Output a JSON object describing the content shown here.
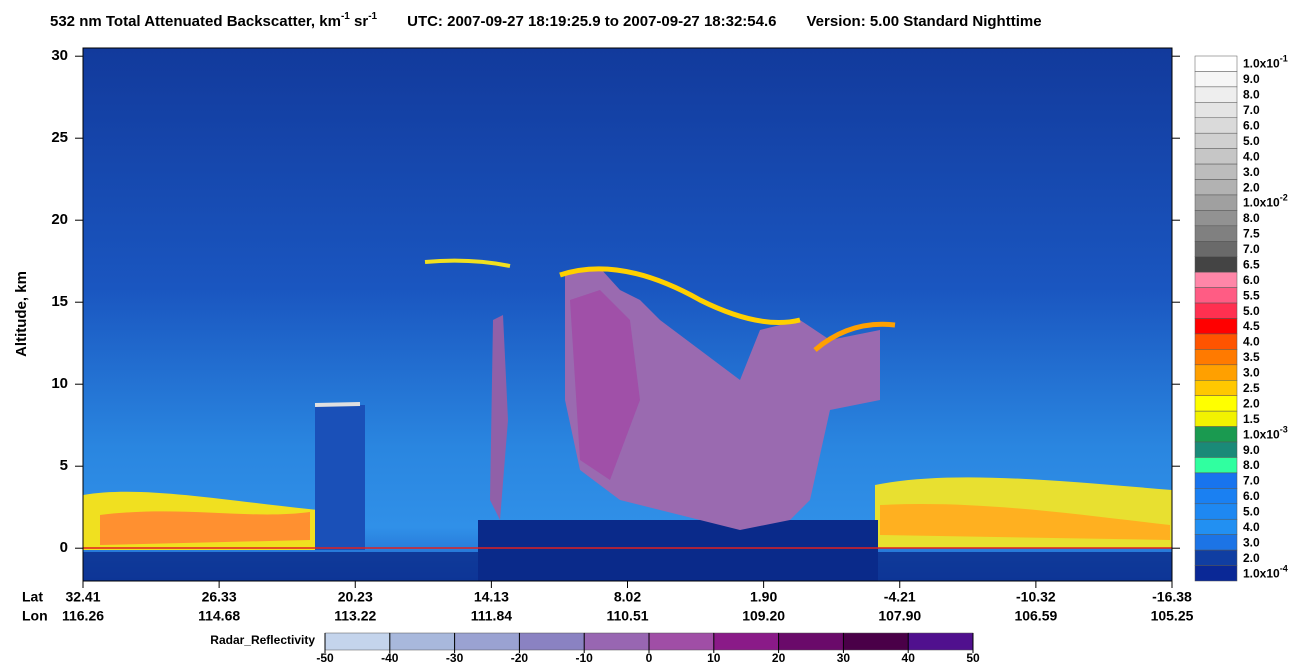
{
  "chart_data": {
    "type": "curtain",
    "title_parts": [
      "532 nm Total Attenuated Backscatter, km",
      "-1",
      " sr",
      "-1"
    ],
    "utc": "UTC:  2007-09-27 18:19:25.9  to  2007-09-27 18:32:54.6",
    "version": "Version: 5.00  Standard  Nighttime",
    "ylabel": "Altitude, km",
    "ylim": [
      -2,
      30.5
    ],
    "yticks": [
      0,
      5,
      10,
      15,
      20,
      25,
      30
    ],
    "x_row_labels": [
      "Lat",
      "Lon"
    ],
    "lat": [
      "32.41",
      "26.33",
      "20.23",
      "14.13",
      "8.02",
      "1.90",
      "-4.21",
      "-10.32",
      "-16.38"
    ],
    "lon": [
      "116.26",
      "114.68",
      "113.22",
      "111.84",
      "110.51",
      "109.20",
      "107.90",
      "106.59",
      "105.25"
    ],
    "colorbar": [
      {
        "text": "1.0x10",
        "sup": "-1",
        "color": "#ffffff"
      },
      {
        "text": "9.0",
        "color": "#f6f6f6"
      },
      {
        "text": "8.0",
        "color": "#eeeeee"
      },
      {
        "text": "7.0",
        "color": "#e4e4e4"
      },
      {
        "text": "6.0",
        "color": "#dadada"
      },
      {
        "text": "5.0",
        "color": "#d0d0d0"
      },
      {
        "text": "4.0",
        "color": "#c6c6c6"
      },
      {
        "text": "3.0",
        "color": "#bcbcbc"
      },
      {
        "text": "2.0",
        "color": "#b2b2b2"
      },
      {
        "text": "1.0x10",
        "sup": "-2",
        "color": "#a0a0a0"
      },
      {
        "text": "8.0",
        "color": "#929292"
      },
      {
        "text": "7.5",
        "color": "#808080"
      },
      {
        "text": "7.0",
        "color": "#6a6a6a"
      },
      {
        "text": "6.5",
        "color": "#444444"
      },
      {
        "text": "6.0",
        "color": "#ff86a8"
      },
      {
        "text": "5.5",
        "color": "#ff5c84"
      },
      {
        "text": "5.0",
        "color": "#ff3050"
      },
      {
        "text": "4.5",
        "color": "#ff0000"
      },
      {
        "text": "4.0",
        "color": "#ff5400"
      },
      {
        "text": "3.5",
        "color": "#ff7a00"
      },
      {
        "text": "3.0",
        "color": "#ffa000"
      },
      {
        "text": "2.5",
        "color": "#ffc800"
      },
      {
        "text": "2.0",
        "color": "#ffff00"
      },
      {
        "text": "1.5",
        "color": "#f2f200"
      },
      {
        "text": "1.0x10",
        "sup": "-3",
        "color": "#1a9a50"
      },
      {
        "text": "9.0",
        "color": "#1a8a78"
      },
      {
        "text": "8.0",
        "color": "#30ffa0"
      },
      {
        "text": "7.0",
        "color": "#1874ee"
      },
      {
        "text": "6.0",
        "color": "#1a80f2"
      },
      {
        "text": "5.0",
        "color": "#1e88f2"
      },
      {
        "text": "4.0",
        "color": "#2290f2"
      },
      {
        "text": "3.0",
        "color": "#1c74e6"
      },
      {
        "text": "2.0",
        "color": "#103ea2"
      },
      {
        "text": "1.0x10",
        "sup": "-4",
        "color": "#0a2896"
      }
    ],
    "radar": {
      "label": "Radar_Reflectivity",
      "lim": [
        -50,
        50
      ],
      "ticks": [
        -50,
        -40,
        -30,
        -20,
        -10,
        0,
        10,
        20,
        30,
        40,
        50
      ],
      "colors": [
        "#c4d4ec",
        "#a8b8dc",
        "#9aa2d2",
        "#8a82c2",
        "#9866b2",
        "#a04ea6",
        "#8a1a88",
        "#6a0a6a",
        "#4a0048",
        "#50108e"
      ]
    }
  }
}
